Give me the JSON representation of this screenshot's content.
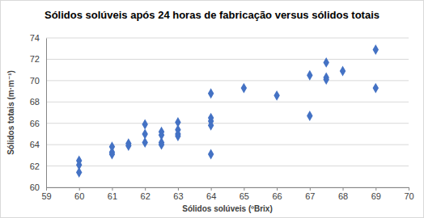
{
  "chart_data": {
    "type": "scatter",
    "title": "Sólidos solúveis após 24 horas de fabricação versus sólidos totais",
    "x_label": "Sólidos solúveis (ºBrix)",
    "y_label": "Sólidos totais (m·m⁻¹)",
    "x": [
      60,
      60,
      60,
      61,
      61,
      61,
      61.5,
      61.5,
      62,
      62,
      62,
      62.5,
      62.5,
      62.5,
      62.5,
      63,
      63,
      63,
      63,
      64,
      64,
      64,
      64,
      64,
      65,
      66,
      67,
      67,
      67.5,
      67.5,
      67.5,
      68,
      69,
      69
    ],
    "values": [
      62.5,
      62.1,
      61.4,
      63.8,
      63.3,
      63.1,
      64.1,
      63.9,
      65.9,
      65.0,
      64.2,
      65.2,
      64.9,
      64.2,
      64.0,
      66.1,
      65.4,
      65.0,
      64.8,
      68.8,
      66.5,
      66.2,
      65.8,
      63.1,
      69.3,
      68.6,
      70.5,
      66.7,
      71.7,
      70.3,
      70.1,
      70.9,
      72.9,
      69.3
    ],
    "color": "#4472c4",
    "marker": "diamond",
    "xlim": [
      59,
      70
    ],
    "xticks": [
      59,
      60,
      61,
      62,
      63,
      64,
      65,
      66,
      67,
      68,
      69,
      70
    ],
    "ylim": [
      60,
      74
    ],
    "yticks": [
      60,
      62,
      64,
      66,
      68,
      70,
      72,
      74
    ],
    "grid": true
  }
}
